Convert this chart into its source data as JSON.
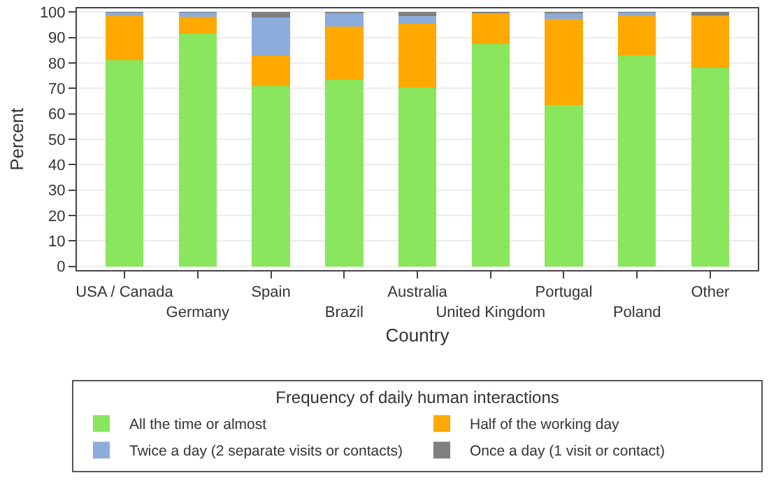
{
  "chart_data": {
    "type": "bar",
    "stacked": true,
    "xlabel": "Country",
    "ylabel": "Percent",
    "legend_title": "Frequency of daily human interactions",
    "legend": "bottom",
    "grid": "y",
    "categories": [
      "USA / Canada",
      "Germany",
      "Spain",
      "Brazil",
      "Australia",
      "United Kingdom",
      "Portugal",
      "Poland",
      "Other"
    ],
    "ylim": [
      -1.5,
      101.5
    ],
    "yticks": [
      0,
      10,
      20,
      30,
      40,
      50,
      60,
      70,
      80,
      90,
      100
    ],
    "series": [
      {
        "name": "All the time or almost",
        "color": "#8ae65c",
        "values": [
          81,
          91.5,
          71,
          73.4,
          70.5,
          87.5,
          63.5,
          83,
          78
        ]
      },
      {
        "name": "Half of the working day",
        "color": "#ffa800",
        "values": [
          17.5,
          6.6,
          12,
          21,
          25,
          12,
          34,
          15.5,
          20.5
        ]
      },
      {
        "name": "Twice a day (2 separate visits or contacts)",
        "color": "#8cacdc",
        "values": [
          1.3,
          1.7,
          15,
          5.3,
          3,
          0,
          2,
          1.3,
          0.3
        ]
      },
      {
        "name": "Once a day (1 visit or contact)",
        "color": "#7f7f7f",
        "values": [
          0.2,
          0.2,
          2,
          0.3,
          1.5,
          0.5,
          0.5,
          0.2,
          1.2
        ]
      }
    ]
  }
}
